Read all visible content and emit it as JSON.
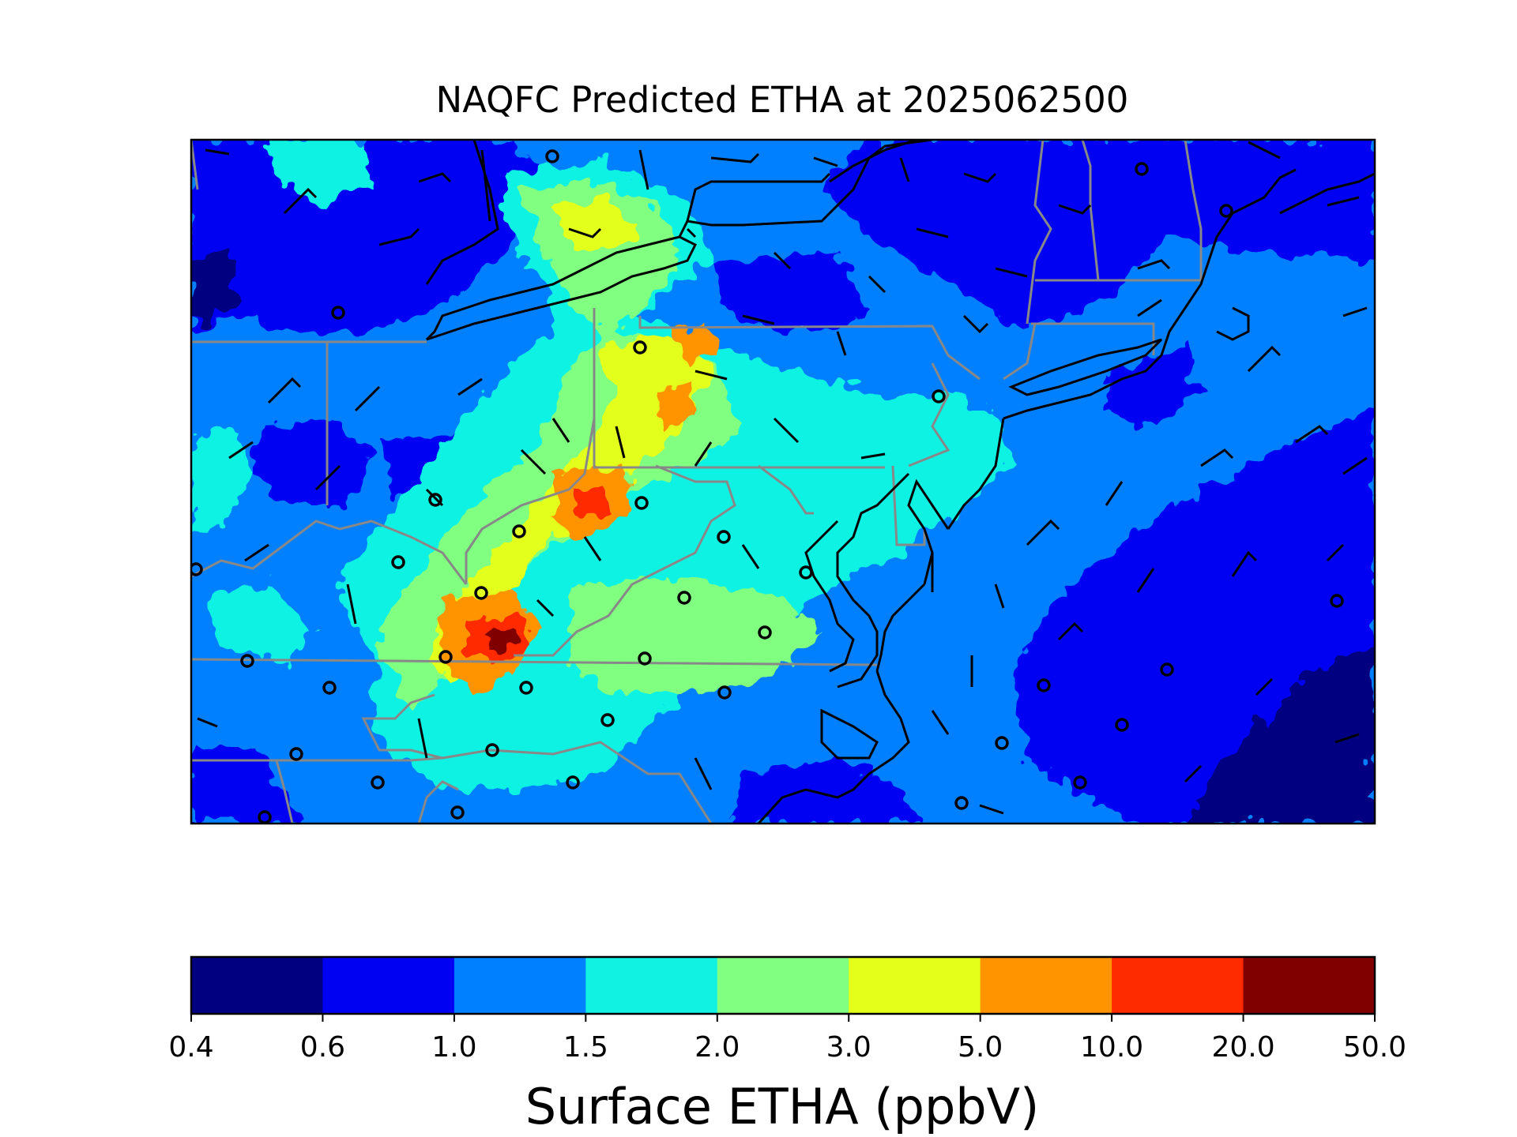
{
  "title": "NAQFC Predicted ETHA at 2025062500",
  "colorbar": {
    "label": "Surface ETHA (ppbV)",
    "ticks": [
      "0.4",
      "0.6",
      "1.0",
      "1.5",
      "2.0",
      "3.0",
      "5.0",
      "10.0",
      "20.0",
      "50.0"
    ],
    "colors": [
      "#000080",
      "#0000f2",
      "#0080ff",
      "#11f2e3",
      "#80ff80",
      "#e3ff1a",
      "#ff9400",
      "#ff2b00",
      "#800000"
    ]
  },
  "colors": {
    "state_borders": "#888888",
    "coastlines": "#000000",
    "wind_barbs": "#000000"
  }
}
